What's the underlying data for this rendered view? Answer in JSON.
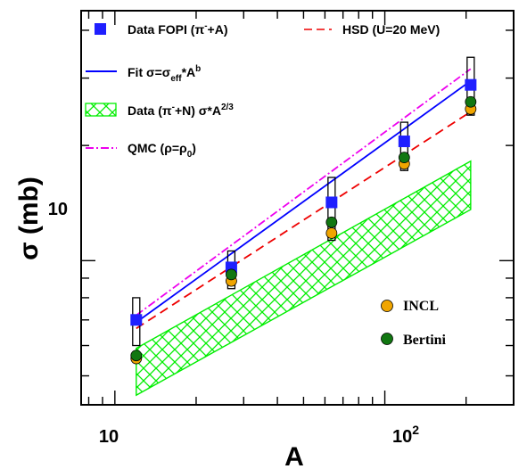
{
  "chart_data": {
    "type": "scatter",
    "xlabel": "A",
    "ylabel": "σ (mb)",
    "xscale": "log",
    "yscale": "log",
    "xlim": [
      7.5,
      300
    ],
    "ylim": [
      4.2,
      45
    ],
    "x_ticks": [
      {
        "value": 10,
        "label": "10"
      },
      {
        "value": 100,
        "label": "10",
        "sup": "2"
      }
    ],
    "y_ticks": [
      {
        "value": 10,
        "label": "10"
      }
    ],
    "x": [
      12,
      27,
      63.5,
      118,
      208
    ],
    "series": [
      {
        "name": "Data FOPI (π⁻+A)",
        "kind": "points",
        "marker": "square",
        "color": "#1f1fff",
        "values": [
          7.0,
          9.6,
          14.2,
          20.5,
          28.8
        ],
        "error_boxes": [
          [
            6.0,
            8.0
          ],
          [
            8.45,
            10.6
          ],
          [
            11.3,
            16.5
          ],
          [
            17.2,
            23.0
          ],
          [
            24.0,
            34.0
          ]
        ]
      },
      {
        "name": "Fit σ=σeff*A^b",
        "kind": "line",
        "color": "#0000ff",
        "dash": "solid",
        "x": [
          12,
          208
        ],
        "values": [
          6.9,
          29.5
        ]
      },
      {
        "name": "Data (π⁻+N) σ*A^2/3",
        "kind": "band",
        "color": "#00ee00",
        "x": [
          12,
          208
        ],
        "lower": [
          4.45,
          13.6
        ],
        "upper": [
          5.9,
          18.2
        ]
      },
      {
        "name": "QMC (ρ=ρ0)",
        "kind": "line",
        "color": "#ee00ee",
        "dash": "dashdot",
        "x": [
          12,
          208
        ],
        "values": [
          7.2,
          31.7
        ]
      },
      {
        "name": "HSD (U=20 MeV)",
        "kind": "line",
        "color": "#ee0000",
        "dash": "dash",
        "x": [
          12,
          208
        ],
        "values": [
          6.65,
          24.5
        ]
      },
      {
        "name": "INCL",
        "kind": "points",
        "marker": "circle",
        "color": "#f0a500",
        "values": [
          5.55,
          8.85,
          11.8,
          17.9,
          24.9
        ]
      },
      {
        "name": "Bertini",
        "kind": "points",
        "marker": "circle",
        "color": "#117711",
        "values": [
          5.65,
          9.2,
          12.6,
          18.6,
          26.0
        ]
      }
    ],
    "legend": {
      "fopi_label": "Data FOPI (π",
      "fopi_label_sup": "-",
      "fopi_label_end": "+A)",
      "fit_label": "Fit σ=σ",
      "fit_label_sub": "eff",
      "fit_label_mid": "*A",
      "fit_label_sup": "b",
      "band_label": "Data (π",
      "band_label_sup": "-",
      "band_label_mid": "+N) σ*A",
      "band_label_sup2": "2/3",
      "qmc_label": "QMC (ρ=ρ",
      "qmc_label_sub": "0",
      "qmc_label_end": ")",
      "hsd_label": "HSD (U=20 MeV)",
      "incl_label": "INCL",
      "bertini_label": "Bertini"
    }
  }
}
